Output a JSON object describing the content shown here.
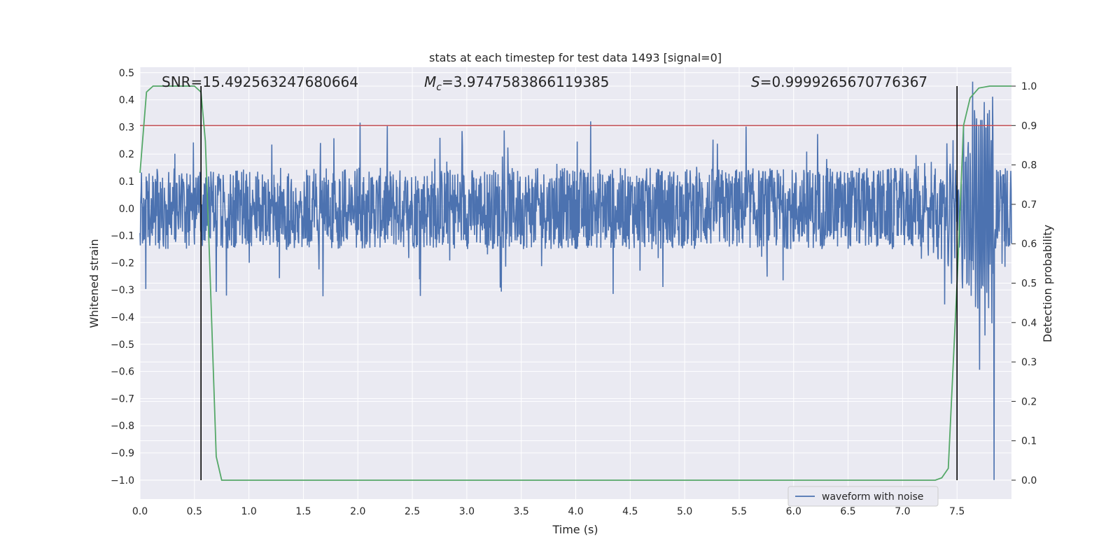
{
  "chart_data": {
    "type": "line",
    "title": "stats at each timestep for test data 1493 [signal=0]",
    "xlabel": "Time (s)",
    "ylabel": "Whitened strain",
    "y2label": "Detection probability",
    "xlim": [
      0.0,
      8.0
    ],
    "ylim": [
      -1.07,
      0.52
    ],
    "y2lim": [
      -0.048,
      1.048
    ],
    "x_ticks": [
      "0.0",
      "0.5",
      "1.0",
      "1.5",
      "2.0",
      "2.5",
      "3.0",
      "3.5",
      "4.0",
      "4.5",
      "5.0",
      "5.5",
      "6.0",
      "6.5",
      "7.0",
      "7.5"
    ],
    "y_ticks": [
      "0.5",
      "0.4",
      "0.3",
      "0.2",
      "0.1",
      "0.0",
      "−0.1",
      "−0.2",
      "−0.3",
      "−0.4",
      "−0.5",
      "−0.6",
      "−0.7",
      "−0.8",
      "−0.9",
      "−1.0"
    ],
    "y2_ticks": [
      "1.0",
      "0.9",
      "0.8",
      "0.7",
      "0.6",
      "0.5",
      "0.4",
      "0.3",
      "0.2",
      "0.1",
      "0.0"
    ],
    "grid": true,
    "legend": {
      "location": "lower-right",
      "entries": [
        "waveform with noise"
      ]
    },
    "annotations": {
      "snr": "SNR=15.492563247680664",
      "mc_symbol": "M",
      "mc_sub": "c",
      "mc_value": "=3.9747583866119385",
      "s_symbol": "S",
      "s_value": "=0.9999265670776367"
    },
    "threshold": {
      "y2": 0.9,
      "color": "#c44e52"
    },
    "detection_window": {
      "x_start": 0.56,
      "x_end": 7.5
    },
    "series": [
      {
        "name": "waveform with noise",
        "axis": "left",
        "color": "#4c72b0",
        "description": "noisy whitened strain, approx. amplitude 0.15 with spikes to 0.3, chirp near the end reaching 0.45 / -1.0",
        "chirp_start": 7.1,
        "merger_time": 7.84,
        "merger_min": -1.0
      },
      {
        "name": "detection probability",
        "axis": "right",
        "color": "#55a868",
        "x": [
          0.0,
          0.06,
          0.12,
          0.2,
          0.3,
          0.4,
          0.5,
          0.56,
          0.6,
          0.64,
          0.7,
          0.75,
          0.8,
          1.0,
          2.0,
          3.0,
          4.0,
          5.0,
          6.0,
          7.0,
          7.3,
          7.36,
          7.42,
          7.5,
          7.56,
          7.62,
          7.7,
          7.8,
          8.0
        ],
        "y": [
          0.78,
          0.985,
          1.0,
          1.0,
          1.0,
          1.0,
          1.0,
          0.985,
          0.86,
          0.55,
          0.06,
          0.0,
          0.0,
          0.0,
          0.0,
          0.0,
          0.0,
          0.0,
          0.0,
          0.0,
          0.0,
          0.006,
          0.03,
          0.5,
          0.9,
          0.97,
          0.995,
          1.0,
          1.0
        ]
      }
    ]
  }
}
